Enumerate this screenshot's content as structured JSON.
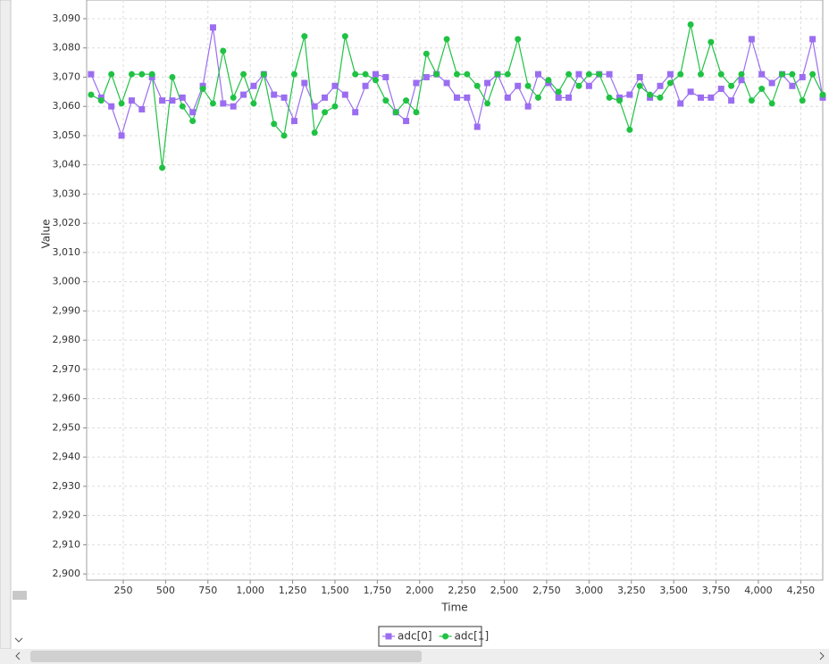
{
  "chart_data": {
    "type": "line",
    "x_label": "Time",
    "y_label": "Value",
    "x": [
      60,
      120,
      180,
      240,
      300,
      360,
      420,
      480,
      540,
      600,
      660,
      720,
      780,
      840,
      900,
      960,
      1020,
      1080,
      1140,
      1200,
      1260,
      1320,
      1380,
      1440,
      1500,
      1560,
      1620,
      1680,
      1740,
      1800,
      1860,
      1920,
      1980,
      2040,
      2100,
      2160,
      2220,
      2280,
      2340,
      2400,
      2460,
      2520,
      2580,
      2640,
      2700,
      2760,
      2820,
      2880,
      2940,
      3000,
      3060,
      3120,
      3180,
      3240,
      3300,
      3360,
      3420,
      3480,
      3540,
      3600,
      3660,
      3720,
      3780,
      3840,
      3900,
      3960,
      4020,
      4080,
      4140,
      4200,
      4260,
      4320,
      4380
    ],
    "series": [
      {
        "name": "adc[0]",
        "color": "#9b6df0",
        "marker": "square",
        "values": [
          3071,
          3063,
          3060,
          3050,
          3062,
          3059,
          3070,
          3062,
          3062,
          3063,
          3058,
          3067,
          3087,
          3061,
          3060,
          3064,
          3067,
          3071,
          3064,
          3063,
          3055,
          3068,
          3060,
          3063,
          3067,
          3064,
          3058,
          3067,
          3071,
          3070,
          3058,
          3055,
          3068,
          3070,
          3071,
          3068,
          3063,
          3063,
          3053,
          3068,
          3071,
          3063,
          3067,
          3060,
          3071,
          3068,
          3063,
          3063,
          3071,
          3067,
          3071,
          3071,
          3063,
          3064,
          3070,
          3063,
          3067,
          3071,
          3061,
          3065,
          3063,
          3063,
          3066,
          3062,
          3069,
          3083,
          3071,
          3068,
          3071,
          3067,
          3070,
          3083,
          3063
        ]
      },
      {
        "name": "adc[1]",
        "color": "#1fc243",
        "marker": "circle",
        "values": [
          3064,
          3062,
          3071,
          3061,
          3071,
          3071,
          3071,
          3039,
          3070,
          3060,
          3055,
          3066,
          3061,
          3079,
          3063,
          3071,
          3061,
          3071,
          3054,
          3050,
          3071,
          3084,
          3051,
          3058,
          3060,
          3084,
          3071,
          3071,
          3069,
          3062,
          3058,
          3062,
          3058,
          3078,
          3071,
          3083,
          3071,
          3071,
          3067,
          3061,
          3071,
          3071,
          3083,
          3067,
          3063,
          3069,
          3065,
          3071,
          3067,
          3071,
          3071,
          3063,
          3062,
          3052,
          3067,
          3064,
          3063,
          3068,
          3071,
          3088,
          3071,
          3082,
          3071,
          3067,
          3071,
          3062,
          3066,
          3061,
          3071,
          3071,
          3062,
          3071,
          3064
        ]
      }
    ],
    "xlim": [
      34,
      4380
    ],
    "ylim": [
      2897.9,
      3096.4
    ],
    "xticks": [
      250,
      500,
      750,
      {
        "value": 1000,
        "label": "1,000"
      },
      {
        "value": 1250,
        "label": "1,250"
      },
      {
        "value": 1500,
        "label": "1,500"
      },
      {
        "value": 1750,
        "label": "1,750"
      },
      {
        "value": 2000,
        "label": "2,000"
      },
      {
        "value": 2250,
        "label": "2,250"
      },
      {
        "value": 2500,
        "label": "2,500"
      },
      {
        "value": 2750,
        "label": "2,750"
      },
      {
        "value": 3000,
        "label": "3,000"
      },
      {
        "value": 3250,
        "label": "3,250"
      },
      {
        "value": 3500,
        "label": "3,500"
      },
      {
        "value": 3750,
        "label": "3,750"
      },
      {
        "value": 4000,
        "label": "4,000"
      },
      {
        "value": 4250,
        "label": "4,250"
      }
    ],
    "yticks": [
      {
        "value": 2900,
        "label": "2,900"
      },
      {
        "value": 2910,
        "label": "2,910"
      },
      {
        "value": 2920,
        "label": "2,920"
      },
      {
        "value": 2930,
        "label": "2,930"
      },
      {
        "value": 2940,
        "label": "2,940"
      },
      {
        "value": 2950,
        "label": "2,950"
      },
      {
        "value": 2960,
        "label": "2,960"
      },
      {
        "value": 2970,
        "label": "2,970"
      },
      {
        "value": 2980,
        "label": "2,980"
      },
      {
        "value": 2990,
        "label": "2,990"
      },
      {
        "value": 3000,
        "label": "3,000"
      },
      {
        "value": 3010,
        "label": "3,010"
      },
      {
        "value": 3020,
        "label": "3,020"
      },
      {
        "value": 3030,
        "label": "3,030"
      },
      {
        "value": 3040,
        "label": "3,040"
      },
      {
        "value": 3050,
        "label": "3,050"
      },
      {
        "value": 3060,
        "label": "3,060"
      },
      {
        "value": 3070,
        "label": "3,070"
      },
      {
        "value": 3080,
        "label": "3,080"
      },
      {
        "value": 3090,
        "label": "3,090"
      }
    ],
    "grid": true,
    "legend": "bottom"
  }
}
